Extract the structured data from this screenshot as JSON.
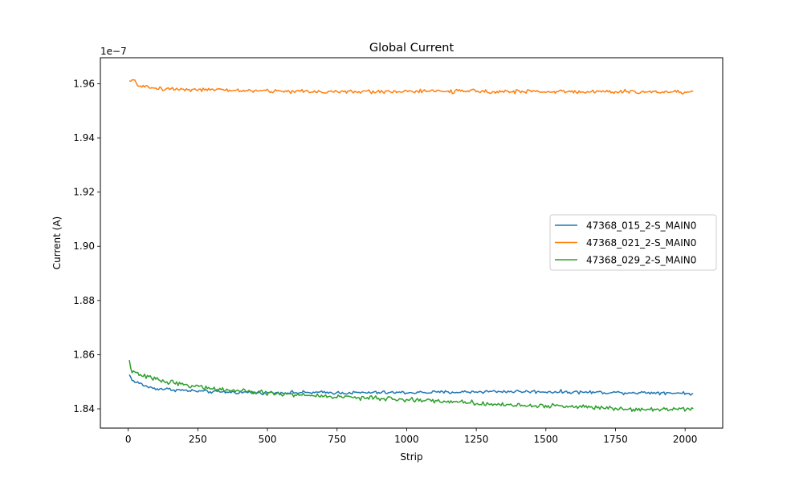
{
  "chart_data": {
    "type": "line",
    "title": "Global Current",
    "xlabel": "Strip",
    "ylabel": "Current (A)",
    "y_offset_label": "1e−7",
    "xlim": [
      -100,
      2135
    ],
    "ylim": [
      1.8329,
      1.9696
    ],
    "x_ticks": [
      0,
      250,
      500,
      750,
      1000,
      1250,
      1500,
      1750,
      2000
    ],
    "x_tick_labels": [
      "0",
      "250",
      "500",
      "750",
      "1000",
      "1250",
      "1500",
      "1750",
      "2000"
    ],
    "y_ticks": [
      1.84,
      1.86,
      1.88,
      1.9,
      1.92,
      1.94,
      1.96
    ],
    "y_tick_labels": [
      "1.84",
      "1.86",
      "1.88",
      "1.90",
      "1.92",
      "1.94",
      "1.96"
    ],
    "grid": false,
    "legend_position": "center-right",
    "series": [
      {
        "name": "47368_015_2-S_MAIN0",
        "color": "#1f77b4",
        "x": [
          4,
          20,
          40,
          60,
          80,
          100,
          150,
          200,
          250,
          300,
          350,
          400,
          500,
          600,
          700,
          800,
          900,
          1000,
          1100,
          1200,
          1300,
          1400,
          1500,
          1600,
          1700,
          1800,
          1900,
          2000,
          2030
        ],
        "values": [
          1.8525,
          1.85,
          1.8495,
          1.8485,
          1.8478,
          1.8475,
          1.8472,
          1.8468,
          1.8465,
          1.8463,
          1.8462,
          1.8461,
          1.846,
          1.846,
          1.846,
          1.8459,
          1.846,
          1.846,
          1.8461,
          1.8462,
          1.8464,
          1.8464,
          1.8463,
          1.8462,
          1.8461,
          1.846,
          1.846,
          1.8458,
          1.8456
        ],
        "noise": 0.0006
      },
      {
        "name": "47368_021_2-S_MAIN0",
        "color": "#ff7f0e",
        "x": [
          4,
          15,
          30,
          50,
          80,
          120,
          200,
          300,
          400,
          500,
          600,
          700,
          800,
          900,
          1000,
          1100,
          1200,
          1300,
          1400,
          1500,
          1600,
          1700,
          1800,
          1900,
          2000,
          2030
        ],
        "values": [
          1.9605,
          1.9615,
          1.96,
          1.959,
          1.9585,
          1.9582,
          1.958,
          1.9577,
          1.9575,
          1.9573,
          1.9572,
          1.9571,
          1.957,
          1.9571,
          1.9572,
          1.9572,
          1.9572,
          1.9572,
          1.9571,
          1.9571,
          1.9571,
          1.957,
          1.957,
          1.957,
          1.957,
          1.957
        ],
        "noise": 0.0007
      },
      {
        "name": "47368_029_2-S_MAIN0",
        "color": "#2ca02c",
        "x": [
          4,
          10,
          20,
          40,
          80,
          120,
          200,
          300,
          400,
          500,
          600,
          700,
          800,
          900,
          1000,
          1100,
          1200,
          1300,
          1400,
          1500,
          1600,
          1700,
          1800,
          1900,
          2000,
          2030
        ],
        "values": [
          1.8578,
          1.8545,
          1.8535,
          1.8525,
          1.8515,
          1.8505,
          1.849,
          1.8475,
          1.8465,
          1.8458,
          1.8452,
          1.8447,
          1.8443,
          1.8438,
          1.8434,
          1.843,
          1.8425,
          1.8418,
          1.8413,
          1.8411,
          1.8409,
          1.8405,
          1.84,
          1.8398,
          1.8402,
          1.8403
        ],
        "noise": 0.0008
      }
    ]
  }
}
